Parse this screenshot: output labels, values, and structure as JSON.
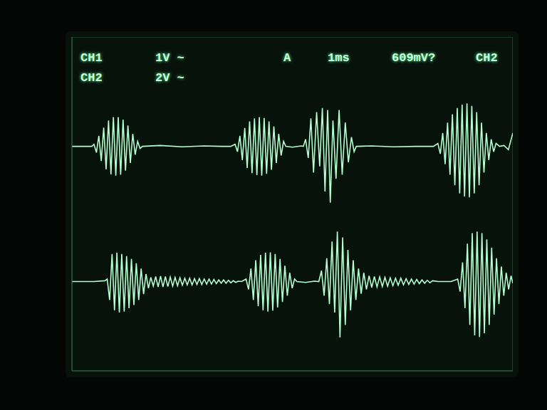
{
  "chart_data": {
    "type": "line",
    "annotations": [
      "CH1",
      "1V ~",
      "A",
      "1ms",
      "609mV?",
      "CH2",
      "CH2",
      "2V ~"
    ],
    "xlim": [
      0,
      10
    ],
    "xticks": [
      0,
      1,
      2,
      3,
      4,
      5,
      6,
      7,
      8,
      9,
      10
    ],
    "ylim": [
      -4,
      4
    ],
    "yticks": [
      -4,
      -3,
      -2,
      -1,
      0,
      1,
      2,
      3,
      4
    ],
    "grid": true,
    "tick_labels": false,
    "series": [
      {
        "color": "#b4ffcf",
        "x": [
          0,
          0.3,
          0.45,
          0.5,
          0.555,
          0.61,
          0.665,
          0.72,
          0.775,
          0.83,
          0.885,
          0.94,
          0.995,
          1.05,
          1.105,
          1.16,
          1.215,
          1.27,
          1.325,
          1.38,
          1.435,
          1.49,
          1.545,
          1.6,
          2.0,
          2.5,
          3.0,
          3.4,
          3.6,
          3.7,
          3.755,
          3.81,
          3.865,
          3.92,
          3.975,
          4.03,
          4.085,
          4.14,
          4.195,
          4.25,
          4.305,
          4.36,
          4.415,
          4.47,
          4.525,
          4.58,
          4.635,
          4.69,
          4.745,
          4.8,
          4.85,
          5.0,
          5.2,
          5.25,
          5.3,
          5.36,
          5.42,
          5.48,
          5.55,
          5.62,
          5.68,
          5.74,
          5.8,
          5.86,
          5.92,
          5.99,
          6.06,
          6.13,
          6.2,
          6.27,
          6.34,
          6.4,
          6.45,
          6.8,
          7.3,
          7.8,
          8.2,
          8.3,
          8.355,
          8.41,
          8.465,
          8.52,
          8.575,
          8.63,
          8.685,
          8.74,
          8.795,
          8.85,
          8.905,
          8.96,
          9.015,
          9.07,
          9.125,
          9.18,
          9.235,
          9.29,
          9.345,
          9.4,
          9.455,
          9.51,
          9.565,
          9.62,
          9.7,
          9.8,
          9.9,
          10.0
        ],
        "values": [
          1.38,
          1.38,
          1.38,
          1.43,
          1.23,
          1.63,
          1.03,
          1.83,
          0.83,
          2.0,
          0.71,
          2.08,
          0.68,
          2.08,
          0.7,
          2.02,
          0.8,
          1.88,
          0.98,
          1.68,
          1.18,
          1.5,
          1.33,
          1.38,
          1.4,
          1.37,
          1.39,
          1.38,
          1.38,
          1.43,
          1.25,
          1.63,
          1.05,
          1.82,
          0.86,
          1.98,
          0.74,
          2.05,
          0.69,
          2.08,
          0.68,
          2.06,
          0.72,
          1.98,
          0.82,
          1.86,
          0.98,
          1.68,
          1.16,
          1.5,
          1.38,
          1.36,
          1.39,
          1.38,
          1.55,
          1.1,
          2.05,
          0.75,
          2.2,
          0.9,
          2.3,
          0.3,
          2.25,
          0.03,
          2.0,
          0.6,
          2.25,
          0.7,
          1.95,
          1.0,
          1.6,
          1.25,
          1.38,
          1.39,
          1.37,
          1.38,
          1.38,
          1.45,
          1.2,
          1.7,
          0.95,
          1.95,
          0.7,
          2.15,
          0.45,
          2.3,
          0.25,
          2.38,
          0.18,
          2.41,
          0.16,
          2.35,
          0.25,
          2.2,
          0.45,
          1.95,
          0.75,
          1.7,
          1.05,
          1.55,
          1.25,
          1.45,
          1.38,
          1.4,
          1.3,
          1.7
        ]
      },
      {
        "color": "#b4ffcf",
        "x": [
          0,
          0.5,
          0.75,
          0.8,
          0.855,
          0.91,
          0.965,
          1.02,
          1.075,
          1.13,
          1.185,
          1.24,
          1.295,
          1.35,
          1.405,
          1.46,
          1.515,
          1.57,
          1.625,
          1.68,
          1.735,
          1.79,
          1.845,
          1.9,
          1.955,
          2.01,
          2.065,
          2.12,
          2.175,
          2.23,
          2.285,
          2.34,
          2.395,
          2.45,
          2.505,
          2.56,
          2.615,
          2.67,
          2.725,
          2.78,
          2.835,
          2.89,
          2.945,
          3.0,
          3.055,
          3.11,
          3.165,
          3.22,
          3.275,
          3.33,
          3.385,
          3.44,
          3.495,
          3.55,
          3.605,
          3.66,
          3.715,
          3.77,
          3.85,
          3.95,
          4.005,
          4.06,
          4.115,
          4.17,
          4.225,
          4.28,
          4.335,
          4.39,
          4.445,
          4.5,
          4.555,
          4.61,
          4.665,
          4.72,
          4.775,
          4.83,
          4.885,
          4.94,
          4.995,
          5.05,
          5.1,
          5.3,
          5.5,
          5.6,
          5.66,
          5.72,
          5.78,
          5.84,
          5.9,
          5.96,
          6.02,
          6.08,
          6.14,
          6.2,
          6.26,
          6.32,
          6.38,
          6.44,
          6.5,
          6.56,
          6.62,
          6.68,
          6.74,
          6.8,
          6.86,
          6.92,
          6.98,
          7.04,
          7.1,
          7.16,
          7.22,
          7.28,
          7.34,
          7.4,
          7.46,
          7.52,
          7.58,
          7.64,
          7.7,
          7.76,
          7.82,
          7.88,
          7.94,
          8.0,
          8.06,
          8.12,
          8.18,
          8.3,
          8.6,
          8.75,
          8.805,
          8.86,
          8.915,
          8.97,
          9.025,
          9.08,
          9.135,
          9.19,
          9.245,
          9.3,
          9.355,
          9.41,
          9.465,
          9.52,
          9.575,
          9.63,
          9.685,
          9.74,
          9.795,
          9.85,
          9.905,
          9.96,
          10.0
        ],
        "values": [
          -1.86,
          -1.86,
          -1.84,
          -1.8,
          -2.3,
          -1.2,
          -2.55,
          -1.17,
          -2.6,
          -1.2,
          -2.58,
          -1.25,
          -2.5,
          -1.32,
          -2.42,
          -1.42,
          -2.3,
          -1.55,
          -2.16,
          -1.68,
          -2.02,
          -1.76,
          -1.97,
          -1.74,
          -1.99,
          -1.73,
          -1.99,
          -1.74,
          -1.98,
          -1.75,
          -1.97,
          -1.76,
          -1.96,
          -1.77,
          -1.95,
          -1.78,
          -1.94,
          -1.78,
          -1.94,
          -1.79,
          -1.93,
          -1.79,
          -1.93,
          -1.8,
          -1.92,
          -1.8,
          -1.92,
          -1.81,
          -1.91,
          -1.82,
          -1.9,
          -1.82,
          -1.9,
          -1.83,
          -1.89,
          -1.84,
          -1.88,
          -1.85,
          -1.86,
          -1.8,
          -2.05,
          -1.55,
          -2.3,
          -1.35,
          -2.45,
          -1.22,
          -2.55,
          -1.17,
          -2.58,
          -1.16,
          -2.56,
          -1.2,
          -2.48,
          -1.32,
          -2.35,
          -1.48,
          -2.2,
          -1.65,
          -2.02,
          -1.8,
          -1.86,
          -1.88,
          -1.85,
          -1.86,
          -1.6,
          -2.2,
          -1.3,
          -2.4,
          -0.9,
          -2.6,
          -0.66,
          -3.2,
          -0.8,
          -2.9,
          -1.1,
          -2.55,
          -1.35,
          -2.3,
          -1.55,
          -2.15,
          -1.65,
          -2.05,
          -1.72,
          -2.0,
          -1.74,
          -1.99,
          -1.75,
          -1.98,
          -1.76,
          -1.97,
          -1.77,
          -1.96,
          -1.78,
          -1.95,
          -1.78,
          -1.94,
          -1.79,
          -1.93,
          -1.8,
          -1.92,
          -1.81,
          -1.91,
          -1.82,
          -1.9,
          -1.83,
          -1.89,
          -1.84,
          -1.86,
          -1.86,
          -1.8,
          -2.1,
          -1.4,
          -2.5,
          -0.95,
          -2.9,
          -0.7,
          -3.15,
          -0.66,
          -3.19,
          -0.7,
          -3.1,
          -0.85,
          -2.9,
          -1.05,
          -2.65,
          -1.3,
          -2.4,
          -1.5,
          -2.2,
          -1.65,
          -2.05,
          -1.72,
          -1.9
        ]
      }
    ]
  }
}
